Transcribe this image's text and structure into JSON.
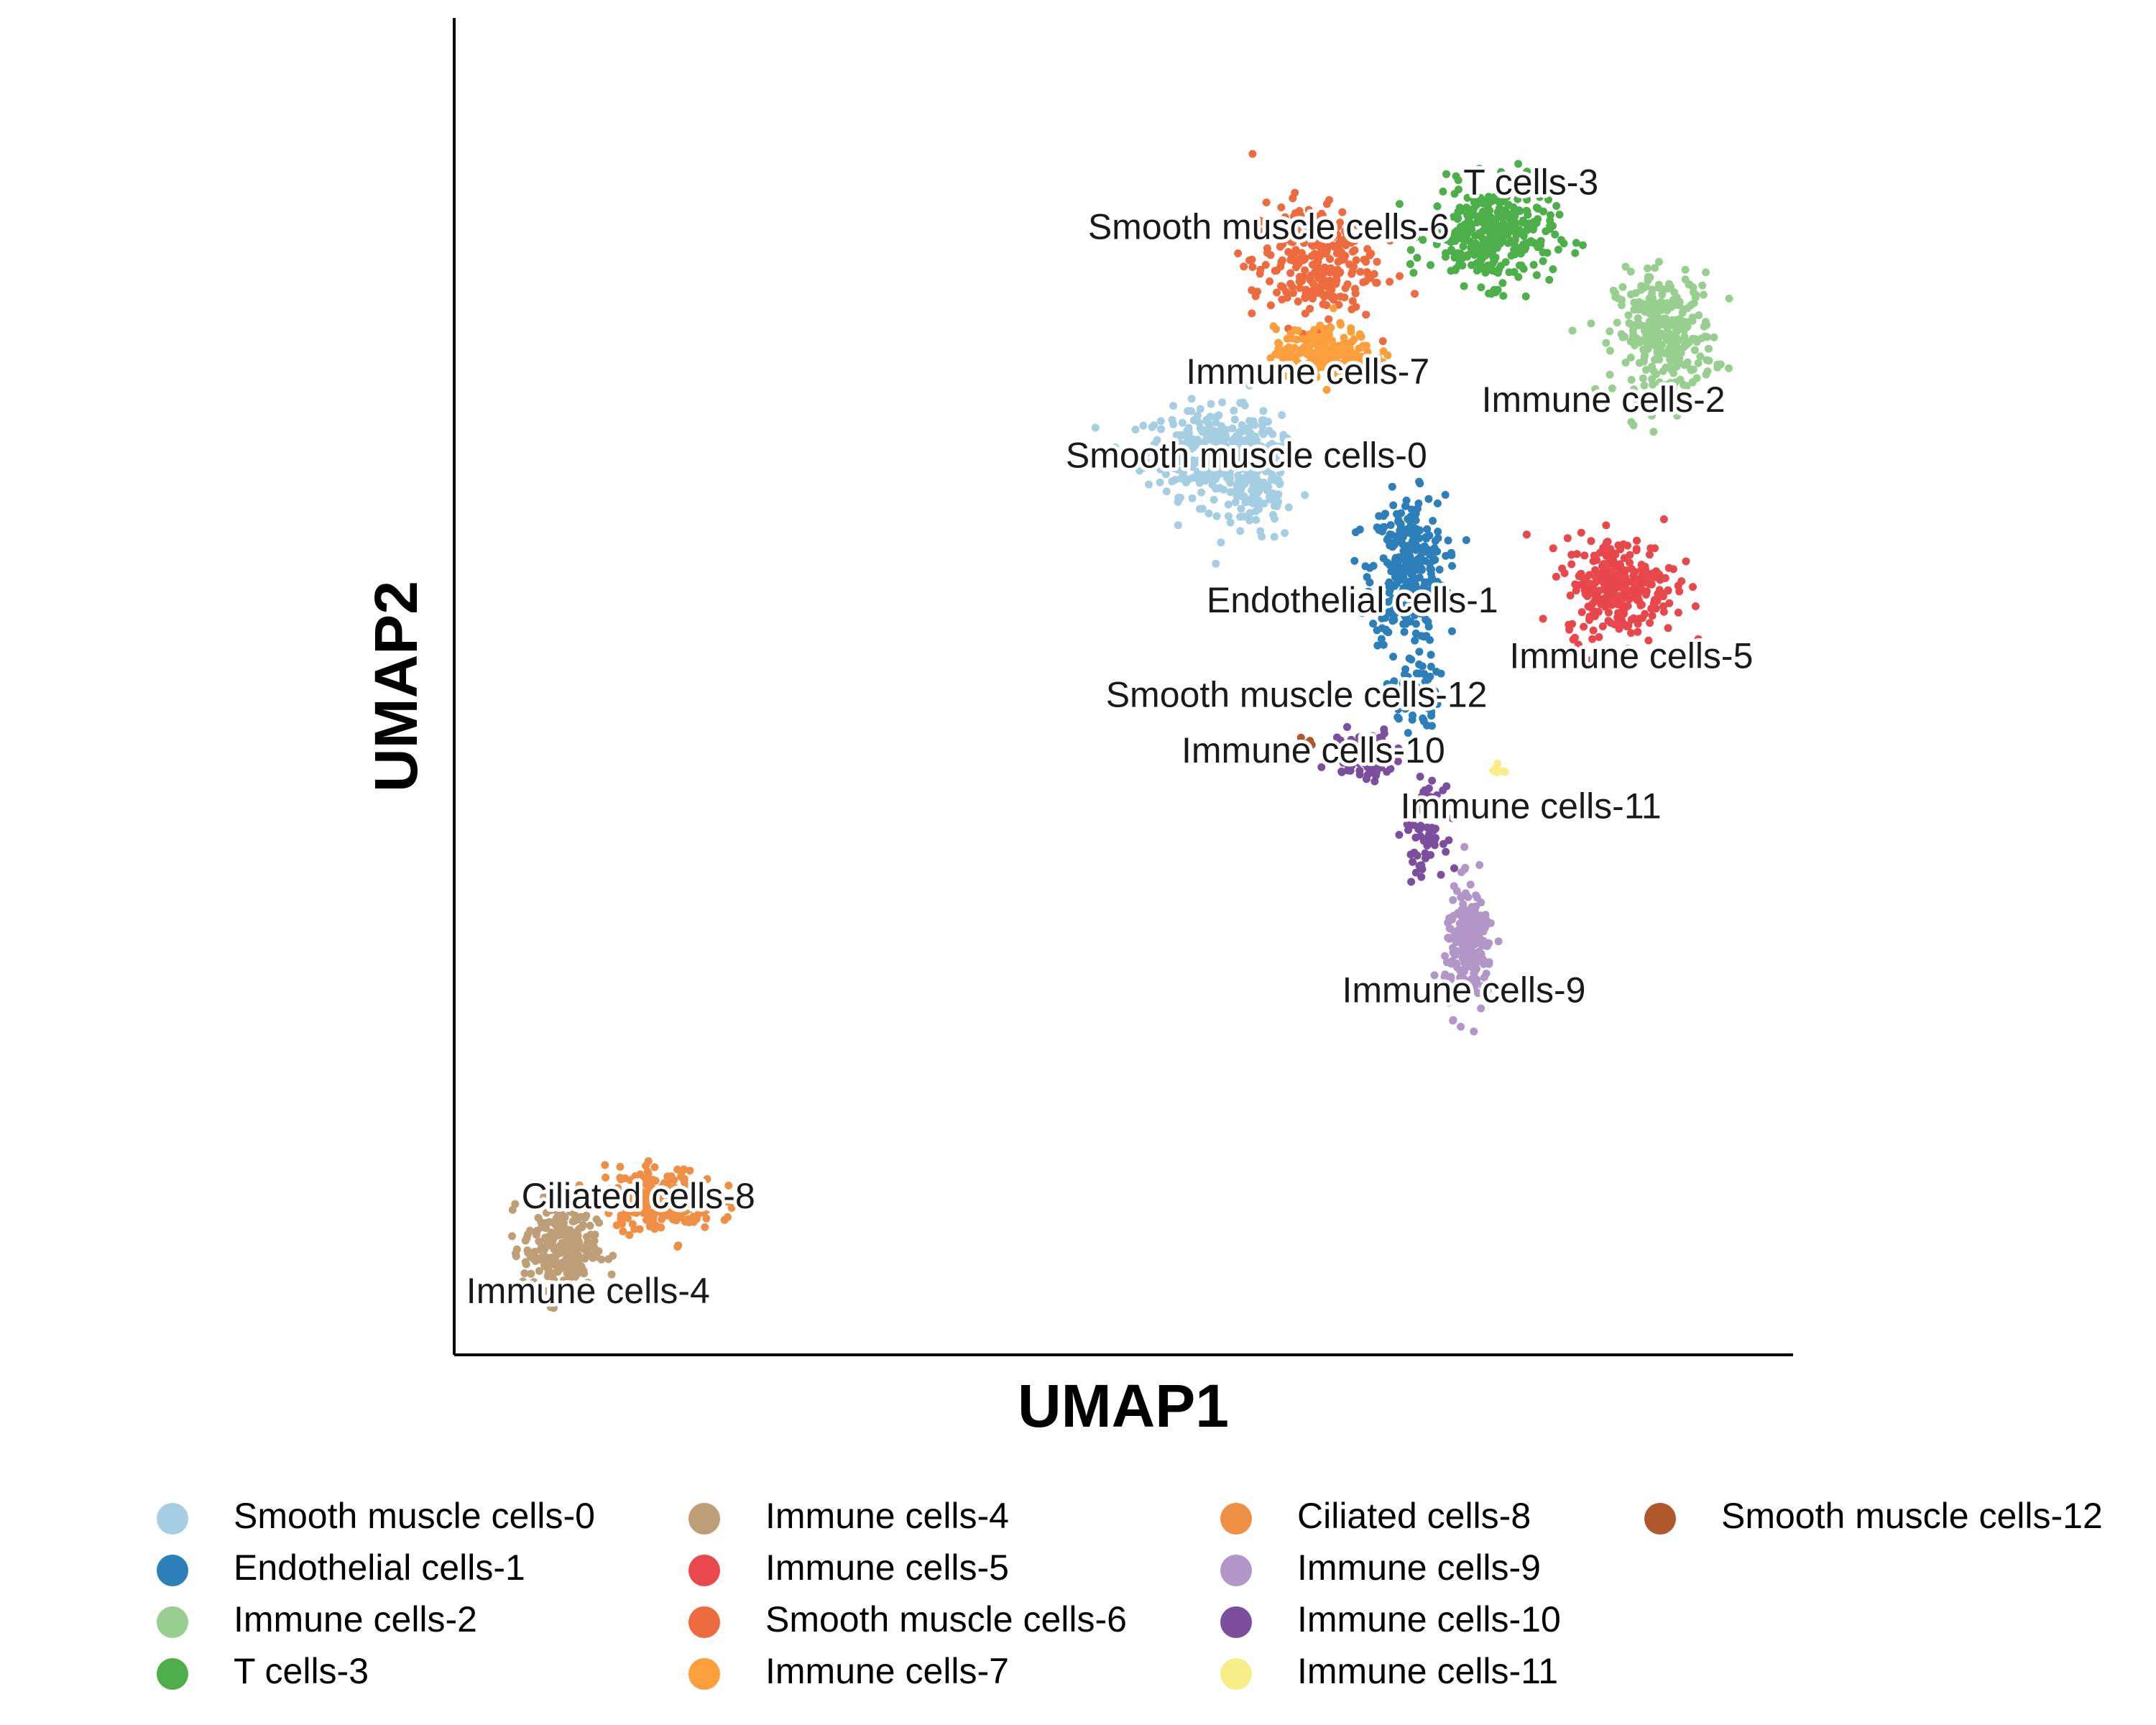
{
  "chart_data": {
    "type": "scatter",
    "xlabel": "UMAP1",
    "ylabel": "UMAP2",
    "xlim": [
      -10,
      14
    ],
    "ylim": [
      -8,
      16
    ],
    "grid": false,
    "legend_position": "bottom",
    "series": [
      {
        "name": "Smooth muscle cells-0",
        "color": "#A6CEE3",
        "label_x": 4.2,
        "label_y": 8.1,
        "blobs": [
          [
            3.6,
            8.2,
            1.1,
            0.7,
            320
          ],
          [
            4.4,
            7.6,
            0.6,
            1.0,
            140
          ]
        ]
      },
      {
        "name": "Endothelial cells-1",
        "color": "#2C7FB8",
        "label_x": 6.1,
        "label_y": 5.5,
        "blobs": [
          [
            7.1,
            6.1,
            0.6,
            1.2,
            320
          ],
          [
            7.2,
            3.9,
            0.4,
            0.6,
            60
          ]
        ]
      },
      {
        "name": "Immune cells-2",
        "color": "#98CF90",
        "label_x": 10.6,
        "label_y": 9.1,
        "blobs": [
          [
            11.7,
            10.3,
            0.8,
            1.0,
            320
          ]
        ]
      },
      {
        "name": "T cells-3",
        "color": "#4DAF4A",
        "label_x": 9.3,
        "label_y": 13.0,
        "blobs": [
          [
            8.6,
            12.1,
            1.0,
            0.8,
            320
          ]
        ]
      },
      {
        "name": "Immune cells-4",
        "color": "#BE9E77",
        "label_x": -7.6,
        "label_y": -6.9,
        "blobs": [
          [
            -8.1,
            -6.1,
            0.6,
            0.8,
            260
          ]
        ]
      },
      {
        "name": "Immune cells-5",
        "color": "#E8474C",
        "label_x": 11.1,
        "label_y": 4.5,
        "blobs": [
          [
            10.9,
            5.8,
            0.9,
            0.8,
            280
          ]
        ]
      },
      {
        "name": "Smooth muscle cells-6",
        "color": "#EE6A3F",
        "label_x": 4.6,
        "label_y": 12.2,
        "blobs": [
          [
            5.4,
            11.6,
            1.0,
            1.0,
            260
          ]
        ]
      },
      {
        "name": "Immune cells-7",
        "color": "#FD9E3C",
        "label_x": 5.3,
        "label_y": 9.6,
        "blobs": [
          [
            5.6,
            10.0,
            0.8,
            0.4,
            200
          ]
        ]
      },
      {
        "name": "Ciliated cells-8",
        "color": "#EF8F45",
        "label_x": -6.7,
        "label_y": -5.2,
        "blobs": [
          [
            -6.3,
            -5.2,
            0.9,
            0.5,
            240
          ]
        ]
      },
      {
        "name": "Immune cells-9",
        "color": "#B196C8",
        "label_x": 8.1,
        "label_y": -1.5,
        "blobs": [
          [
            8.2,
            -0.7,
            0.4,
            1.0,
            200
          ]
        ]
      },
      {
        "name": "Immune cells-10",
        "color": "#7B4F9D",
        "label_x": 5.4,
        "label_y": 2.8,
        "blobs": [
          [
            6.3,
            2.8,
            0.5,
            0.4,
            100
          ],
          [
            7.4,
            1.4,
            0.3,
            0.7,
            60
          ]
        ]
      },
      {
        "name": "Immune cells-11",
        "color": "#F7EE8A",
        "label_x": 9.3,
        "label_y": 1.8,
        "blobs": [
          [
            8.7,
            2.5,
            0.12,
            0.1,
            8
          ]
        ]
      },
      {
        "name": "Smooth muscle cells-12",
        "color": "#B0582B",
        "label_x": 5.1,
        "label_y": 3.8,
        "blobs": [
          [
            5.3,
            3.0,
            0.15,
            0.15,
            5
          ]
        ]
      }
    ]
  }
}
